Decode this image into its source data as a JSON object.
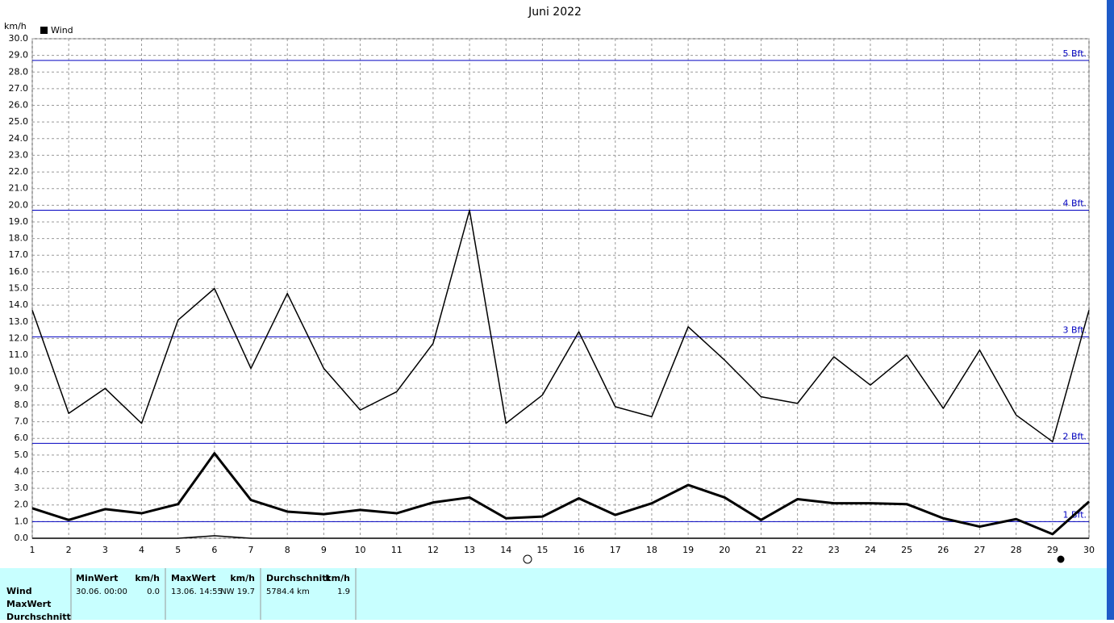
{
  "chart_data": {
    "type": "line",
    "title": "Juni 2022",
    "y_label": "km/h",
    "legend": "Wind",
    "x": [
      1,
      2,
      3,
      4,
      5,
      6,
      7,
      8,
      9,
      10,
      11,
      12,
      13,
      14,
      15,
      16,
      17,
      18,
      19,
      20,
      21,
      22,
      23,
      24,
      25,
      26,
      27,
      28,
      29,
      30
    ],
    "xlim": [
      1,
      30
    ],
    "xticks": [
      1,
      2,
      3,
      4,
      5,
      6,
      7,
      8,
      9,
      10,
      11,
      12,
      13,
      14,
      15,
      16,
      17,
      18,
      19,
      20,
      21,
      22,
      23,
      24,
      25,
      26,
      27,
      28,
      29,
      30
    ],
    "ylim": [
      0,
      30
    ],
    "yticks": [
      {
        "value": 0,
        "label": "0.0"
      },
      {
        "value": 1,
        "label": "1.0"
      },
      {
        "value": 2,
        "label": "2.0"
      },
      {
        "value": 3,
        "label": "3.0"
      },
      {
        "value": 4,
        "label": "4.0"
      },
      {
        "value": 5,
        "label": "5.0"
      },
      {
        "value": 6,
        "label": "6.0"
      },
      {
        "value": 7,
        "label": "7.0"
      },
      {
        "value": 8,
        "label": "8.0"
      },
      {
        "value": 9,
        "label": "9.0"
      },
      {
        "value": 10,
        "label": "10.0"
      },
      {
        "value": 11,
        "label": "11.0"
      },
      {
        "value": 12,
        "label": "12.0"
      },
      {
        "value": 13,
        "label": "13.0"
      },
      {
        "value": 14,
        "label": "14.0"
      },
      {
        "value": 15,
        "label": "15.0"
      },
      {
        "value": 16,
        "label": "16.0"
      },
      {
        "value": 17,
        "label": "17.0"
      },
      {
        "value": 18,
        "label": "18.0"
      },
      {
        "value": 19,
        "label": "19.0"
      },
      {
        "value": 20,
        "label": "20.0"
      },
      {
        "value": 21,
        "label": "21.0"
      },
      {
        "value": 22,
        "label": "22.0"
      },
      {
        "value": 23,
        "label": "23.0"
      },
      {
        "value": 24,
        "label": "24.0"
      },
      {
        "value": 25,
        "label": "25.0"
      },
      {
        "value": 26,
        "label": "26.0"
      },
      {
        "value": 27,
        "label": "27.0"
      },
      {
        "value": 28,
        "label": "28.0"
      },
      {
        "value": 29,
        "label": "29.0"
      },
      {
        "value": 30,
        "label": "30.0"
      }
    ],
    "grid": true,
    "reference_lines": [
      {
        "value": 1.0,
        "label": "1 Bft."
      },
      {
        "value": 5.7,
        "label": "2 Bft."
      },
      {
        "value": 12.1,
        "label": "3 Bft."
      },
      {
        "value": 19.7,
        "label": "4 Bft."
      },
      {
        "value": 28.7,
        "label": "5 Bft."
      }
    ],
    "reference_color": "#0000c0",
    "series": [
      {
        "color": "#000000",
        "width": 1.5,
        "values": [
          13.7,
          7.5,
          9.0,
          6.9,
          13.1,
          15.0,
          10.2,
          14.7,
          10.2,
          7.7,
          8.8,
          11.7,
          19.7,
          6.9,
          8.6,
          12.4,
          7.9,
          7.3,
          12.7,
          10.7,
          8.5,
          8.1,
          10.9,
          9.2,
          11.0,
          7.8,
          11.3,
          7.4,
          5.8,
          13.7
        ]
      },
      {
        "color": "#000000",
        "width": 3,
        "values": [
          1.8,
          1.1,
          1.75,
          1.5,
          2.05,
          5.1,
          2.3,
          1.6,
          1.45,
          1.7,
          1.5,
          2.15,
          2.45,
          1.2,
          1.3,
          2.4,
          1.4,
          2.1,
          3.2,
          2.45,
          1.1,
          2.35,
          2.1,
          2.1,
          2.05,
          1.2,
          0.7,
          1.15,
          0.25,
          2.2
        ]
      },
      {
        "color": "#000000",
        "width": 1.5,
        "values": [
          0,
          0,
          0,
          0,
          0,
          0.15,
          0,
          0,
          0,
          0,
          0,
          0,
          0,
          0,
          0,
          0,
          0,
          0,
          0,
          0,
          0,
          0,
          0,
          0,
          0,
          0,
          0,
          0,
          0,
          0
        ]
      }
    ]
  },
  "stats": {
    "row_labels": [
      "Wind",
      "MaxWert",
      "Durchschnitt"
    ],
    "columns": [
      {
        "header": "MinWert",
        "unit": "km/h",
        "time": "30.06.  00:00",
        "value": "0.0"
      },
      {
        "header": "MaxWert",
        "unit": "km/h",
        "time": "13.06.  14:55",
        "value": "NW 19.7"
      },
      {
        "header": "Durchschnitt",
        "unit": "km/h",
        "time": "5784.4 km",
        "value": "1.9"
      }
    ]
  }
}
